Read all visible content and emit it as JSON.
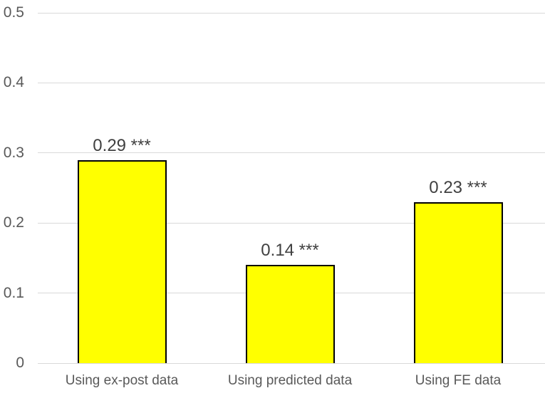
{
  "chart_data": {
    "type": "bar",
    "categories": [
      "Using ex-post data",
      "Using predicted data",
      "Using FE data"
    ],
    "values": [
      0.29,
      0.14,
      0.23
    ],
    "data_labels": [
      "0.29 ***",
      "0.14 ***",
      "0.23 ***"
    ],
    "title": "",
    "xlabel": "",
    "ylabel": "",
    "ylim": [
      0,
      0.5
    ],
    "yticks": [
      0,
      0.1,
      0.2,
      0.3,
      0.4,
      0.5
    ],
    "ytick_labels": [
      "0",
      "0.1",
      "0.2",
      "0.3",
      "0.4",
      "0.5"
    ],
    "grid": true,
    "legend": false,
    "bar_color": "#FFFF00",
    "bar_border_color": "#000000"
  },
  "colors": {
    "background": "#FFFFFF",
    "gridline": "#D9D9D9",
    "axis_text": "#595959",
    "data_label_text": "#404040"
  }
}
